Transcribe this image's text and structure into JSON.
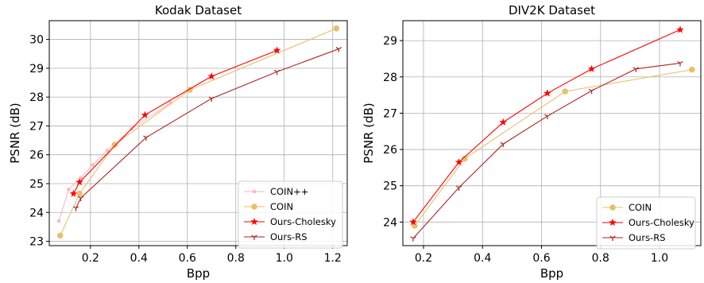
{
  "chart_data": [
    {
      "type": "line",
      "title": "Kodak Dataset",
      "xlabel": "Bpp",
      "ylabel": "PSNR (dB)",
      "xlim": [
        0.03,
        1.26
      ],
      "ylim": [
        22.85,
        30.65
      ],
      "xticks": [
        0.2,
        0.4,
        0.6,
        0.8,
        1.0,
        1.2
      ],
      "xtick_labels": [
        "0.2",
        "0.4",
        "0.6",
        "0.8",
        "1.0",
        "1.2"
      ],
      "yticks": [
        23,
        24,
        25,
        26,
        27,
        28,
        29,
        30
      ],
      "ytick_labels": [
        "23",
        "24",
        "25",
        "26",
        "27",
        "28",
        "29",
        "30"
      ],
      "grid": true,
      "legend_position": "bottom-right",
      "series": [
        {
          "name": "COIN++",
          "color": "#ffb6c1",
          "marker": "circle-small",
          "x": [
            0.07,
            0.11,
            0.16,
            0.21,
            0.27,
            0.37,
            0.53
          ],
          "y": [
            23.7,
            24.8,
            25.2,
            25.65,
            26.15,
            26.9,
            27.8
          ]
        },
        {
          "name": "COIN",
          "color": "#e8c06a",
          "marker": "circle",
          "x": [
            0.075,
            0.155,
            0.3,
            0.61,
            1.215
          ],
          "y": [
            23.2,
            24.65,
            26.35,
            28.25,
            30.38
          ]
        },
        {
          "name": "Ours-Cholesky",
          "color": "#ff0000",
          "marker": "star",
          "x": [
            0.13,
            0.155,
            0.425,
            0.7,
            0.97
          ],
          "y": [
            24.65,
            25.05,
            27.38,
            28.72,
            29.62
          ]
        },
        {
          "name": "Ours-RS",
          "color": "#b22222",
          "marker": "tri",
          "x": [
            0.14,
            0.16,
            0.43,
            0.7,
            0.97,
            1.225
          ],
          "y": [
            24.15,
            24.5,
            26.6,
            27.95,
            28.88,
            29.67
          ]
        }
      ]
    },
    {
      "type": "line",
      "title": "DIV2K Dataset",
      "xlabel": "Bpp",
      "ylabel": "PSNR (dB)",
      "xlim": [
        0.13,
        1.14
      ],
      "ylim": [
        23.35,
        29.55
      ],
      "xticks": [
        0.2,
        0.4,
        0.6,
        0.8,
        1.0
      ],
      "xtick_labels": [
        "0.2",
        "0.4",
        "0.6",
        "0.8",
        "1.0"
      ],
      "yticks": [
        24,
        25,
        26,
        27,
        28,
        29
      ],
      "ytick_labels": [
        "24",
        "25",
        "26",
        "27",
        "28",
        "29"
      ],
      "grid": true,
      "legend_position": "bottom-right",
      "series": [
        {
          "name": "COIN",
          "color": "#e8c06a",
          "marker": "circle",
          "x": [
            0.17,
            0.34,
            0.68,
            1.11
          ],
          "y": [
            23.9,
            25.75,
            27.6,
            28.2
          ]
        },
        {
          "name": "Ours-Cholesky",
          "color": "#ff0000",
          "marker": "star",
          "x": [
            0.165,
            0.32,
            0.47,
            0.62,
            0.77,
            1.07
          ],
          "y": [
            24.0,
            25.65,
            26.75,
            27.55,
            28.22,
            29.3
          ]
        },
        {
          "name": "Ours-RS",
          "color": "#b22222",
          "marker": "tri",
          "x": [
            0.165,
            0.32,
            0.47,
            0.62,
            0.77,
            0.92,
            1.07
          ],
          "y": [
            23.55,
            24.95,
            26.15,
            26.92,
            27.62,
            28.22,
            28.38
          ]
        }
      ]
    }
  ]
}
